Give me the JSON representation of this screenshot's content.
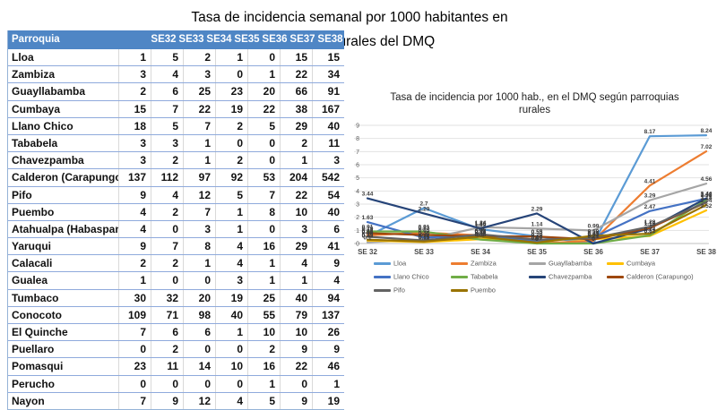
{
  "page": {
    "title_line1": "Tasa de incidencia semanal por 1000 habitantes en",
    "title_line2": "parroquias rurales del DMQ"
  },
  "table": {
    "colors": {
      "header_bg": "#4F86C5",
      "header_text": "#ffffff",
      "row_border": "#8FAADC"
    },
    "header": [
      "Parroquia",
      "SE32",
      "SE33",
      "SE34",
      "SE35",
      "SE36",
      "SE37",
      "SE38"
    ],
    "rows": [
      {
        "name": "Lloa",
        "values": [
          1,
          5,
          2,
          1,
          0,
          15,
          15
        ]
      },
      {
        "name": "Zambiza",
        "values": [
          3,
          4,
          3,
          0,
          1,
          22,
          34
        ]
      },
      {
        "name": "Guayllabamba",
        "values": [
          2,
          6,
          25,
          23,
          20,
          66,
          91
        ]
      },
      {
        "name": "Cumbaya",
        "values": [
          15,
          7,
          22,
          19,
          22,
          38,
          167
        ]
      },
      {
        "name": "Llano Chico",
        "values": [
          18,
          5,
          7,
          2,
          5,
          29,
          40
        ]
      },
      {
        "name": "Tababela",
        "values": [
          3,
          3,
          1,
          0,
          0,
          2,
          11
        ]
      },
      {
        "name": "Chavezpamba",
        "values": [
          3,
          2,
          1,
          2,
          0,
          1,
          3
        ]
      },
      {
        "name": "Calderon (Carapungo)",
        "values": [
          137,
          112,
          97,
          92,
          53,
          204,
          542
        ]
      },
      {
        "name": "Pifo",
        "values": [
          9,
          4,
          12,
          5,
          7,
          22,
          54
        ]
      },
      {
        "name": "Puembo",
        "values": [
          4,
          2,
          7,
          1,
          8,
          10,
          40
        ]
      },
      {
        "name": "Atahualpa (Habaspamba)",
        "values": [
          4,
          0,
          3,
          1,
          0,
          3,
          6
        ]
      },
      {
        "name": "Yaruqui",
        "values": [
          9,
          7,
          8,
          4,
          16,
          29,
          41
        ]
      },
      {
        "name": "Calacali",
        "values": [
          2,
          2,
          1,
          4,
          1,
          4,
          9
        ]
      },
      {
        "name": "Gualea",
        "values": [
          1,
          0,
          0,
          3,
          1,
          1,
          4
        ]
      },
      {
        "name": "Tumbaco",
        "values": [
          30,
          32,
          20,
          19,
          25,
          40,
          94
        ]
      },
      {
        "name": "Conocoto",
        "values": [
          109,
          71,
          98,
          40,
          55,
          79,
          137
        ]
      },
      {
        "name": "El Quinche",
        "values": [
          7,
          6,
          6,
          1,
          10,
          10,
          26
        ]
      },
      {
        "name": "Puellaro",
        "values": [
          0,
          2,
          0,
          0,
          2,
          9,
          9
        ]
      },
      {
        "name": "Pomasqui",
        "values": [
          23,
          11,
          14,
          10,
          16,
          22,
          46
        ]
      },
      {
        "name": "Perucho",
        "values": [
          0,
          0,
          0,
          0,
          1,
          0,
          1
        ]
      },
      {
        "name": "Nayon",
        "values": [
          7,
          9,
          12,
          4,
          5,
          9,
          19
        ]
      }
    ]
  },
  "chart_data": {
    "type": "line",
    "title": "Tasa de incidencia por 1000 hab., en el DMQ según parroquias rurales",
    "categories": [
      "SE 32",
      "SE 33",
      "SE 34",
      "SE 35",
      "SE 36",
      "SE 37",
      "SE 38"
    ],
    "xlabel": "",
    "ylabel": "",
    "ylim": [
      0,
      9
    ],
    "ytick_step": 1,
    "grid": true,
    "legend_position": "bottom",
    "data_labels": true,
    "series": [
      {
        "name": "Lloa",
        "color": "#5B9BD5",
        "values": [
          "0.55",
          "2.7",
          "1.09",
          "0.55",
          "0",
          "8.17",
          "8.24"
        ]
      },
      {
        "name": "Zambiza",
        "color": "#ED7D31",
        "values": [
          "0.62",
          "0.83",
          "0.62",
          "0",
          "0.21",
          "4.41",
          "7.02"
        ]
      },
      {
        "name": "Guayllabamba",
        "color": "#A5A5A5",
        "values": [
          "0.1",
          "0.3",
          "1.24",
          "1.14",
          "0.99",
          "3.29",
          "4.56"
        ]
      },
      {
        "name": "Cumbaya",
        "color": "#FFC000",
        "values": [
          "0.23",
          "0.11",
          "0.33",
          "0.29",
          "0.33",
          "0.57",
          "2.52"
        ]
      },
      {
        "name": "Llano Chico",
        "color": "#4472C4",
        "values": [
          "1.63",
          "0.45",
          "0.63",
          "0.18",
          "0.45",
          "2.47",
          "3.42"
        ]
      },
      {
        "name": "Tababela",
        "color": "#70AD47",
        "values": [
          "0.91",
          "0.91",
          "0.3",
          "0",
          "0",
          "0.61",
          "3.33"
        ]
      },
      {
        "name": "Chavezpamba",
        "color": "#264478",
        "values": [
          "3.44",
          "2.29",
          "1.15",
          "2.29",
          "0",
          "1.15",
          "3.44"
        ]
      },
      {
        "name": "Calderon (Carapungo)",
        "color": "#9E480E",
        "values": [
          "0.79",
          "0.65",
          "0.56",
          "0.53",
          "0.31",
          "1.18",
          "3.13"
        ]
      },
      {
        "name": "Pifo",
        "color": "#636363",
        "values": [
          "0.52",
          "0.23",
          "0.7",
          "0.29",
          "0.41",
          "1.28",
          "3.14"
        ]
      },
      {
        "name": "Puembo",
        "color": "#997300",
        "values": [
          "0.29",
          "0.15",
          "0.51",
          "0.07",
          "0.59",
          "0.74",
          "2.94"
        ]
      }
    ]
  }
}
